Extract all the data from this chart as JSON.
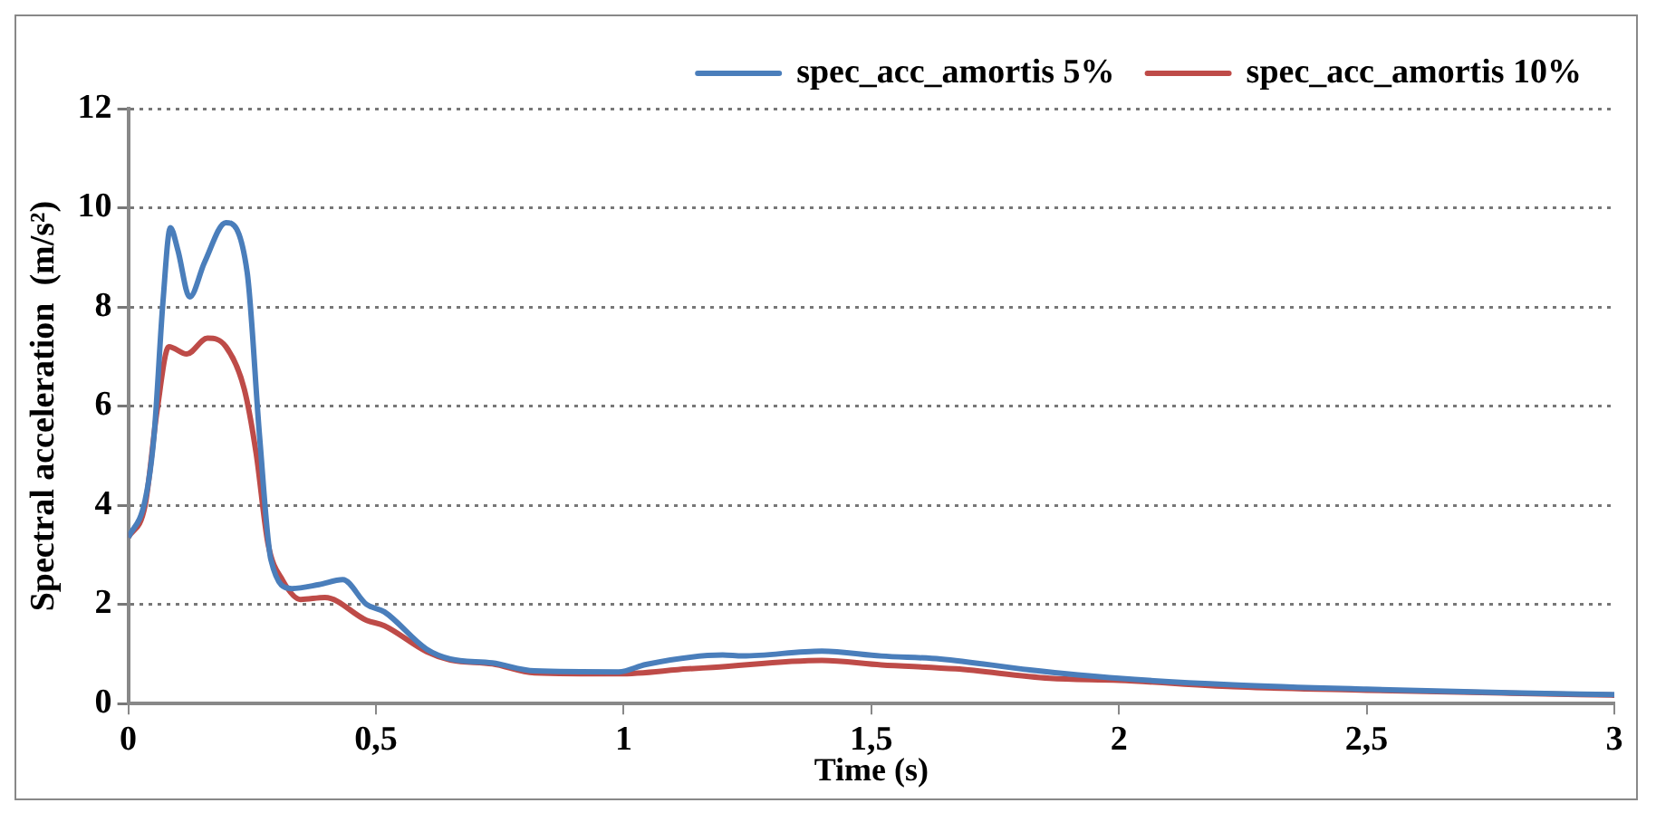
{
  "chart_data": {
    "type": "line",
    "xlabel": "Time (s)",
    "ylabel": "Spectral acceleration  (m/s²)",
    "xlim": [
      0,
      3
    ],
    "xticks": [
      0,
      {
        "value": 0.5,
        "label": "0,5"
      },
      1,
      {
        "value": 1.5,
        "label": "1,5"
      },
      2,
      {
        "value": 2.5,
        "label": "2,5"
      },
      3
    ],
    "ylim": [
      0,
      12
    ],
    "yticks": [
      0,
      2,
      4,
      6,
      8,
      10,
      12
    ],
    "grid": "y",
    "legend": "top right",
    "marker": "none",
    "line_style": "solid",
    "series": [
      {
        "name": "spec_acc_amortis 5%",
        "color": "#4a7ebb",
        "x": [
          0,
          0.034,
          0.052,
          0.07,
          0.085,
          0.1,
          0.124,
          0.154,
          0.197,
          0.24,
          0.265,
          0.288,
          0.33,
          0.385,
          0.433,
          0.481,
          0.517,
          0.602,
          0.65,
          0.735,
          0.82,
          0.99,
          1.045,
          1.2,
          1.24,
          1.4,
          1.52,
          1.64,
          1.82,
          2,
          2.23,
          2.5,
          2.79,
          3
        ],
        "values": [
          3.35,
          4.1,
          5.4,
          8.1,
          9.6,
          9.15,
          8.2,
          8.9,
          9.7,
          8.7,
          5.4,
          2.9,
          2.32,
          2.4,
          2.5,
          2.0,
          1.85,
          1.1,
          0.9,
          0.82,
          0.66,
          0.64,
          0.79,
          0.98,
          0.96,
          1.06,
          0.96,
          0.9,
          0.68,
          0.51,
          0.38,
          0.29,
          0.22,
          0.18
        ]
      },
      {
        "name": "spec_acc_amortis 10%",
        "color": "#be4b48",
        "x": [
          0,
          0.034,
          0.058,
          0.082,
          0.118,
          0.16,
          0.197,
          0.234,
          0.258,
          0.282,
          0.312,
          0.348,
          0.397,
          0.481,
          0.517,
          0.602,
          0.65,
          0.735,
          0.82,
          0.99,
          1.13,
          1.18,
          1.4,
          1.52,
          1.67,
          1.86,
          2,
          2.23,
          2.5,
          2.79,
          3
        ],
        "values": [
          3.35,
          4.0,
          5.9,
          7.2,
          7.05,
          7.37,
          7.2,
          6.35,
          5.06,
          3.23,
          2.48,
          2.1,
          2.14,
          1.68,
          1.57,
          1.05,
          0.88,
          0.8,
          0.62,
          0.6,
          0.7,
          0.73,
          0.87,
          0.78,
          0.7,
          0.51,
          0.47,
          0.34,
          0.27,
          0.21,
          0.17
        ]
      }
    ]
  }
}
